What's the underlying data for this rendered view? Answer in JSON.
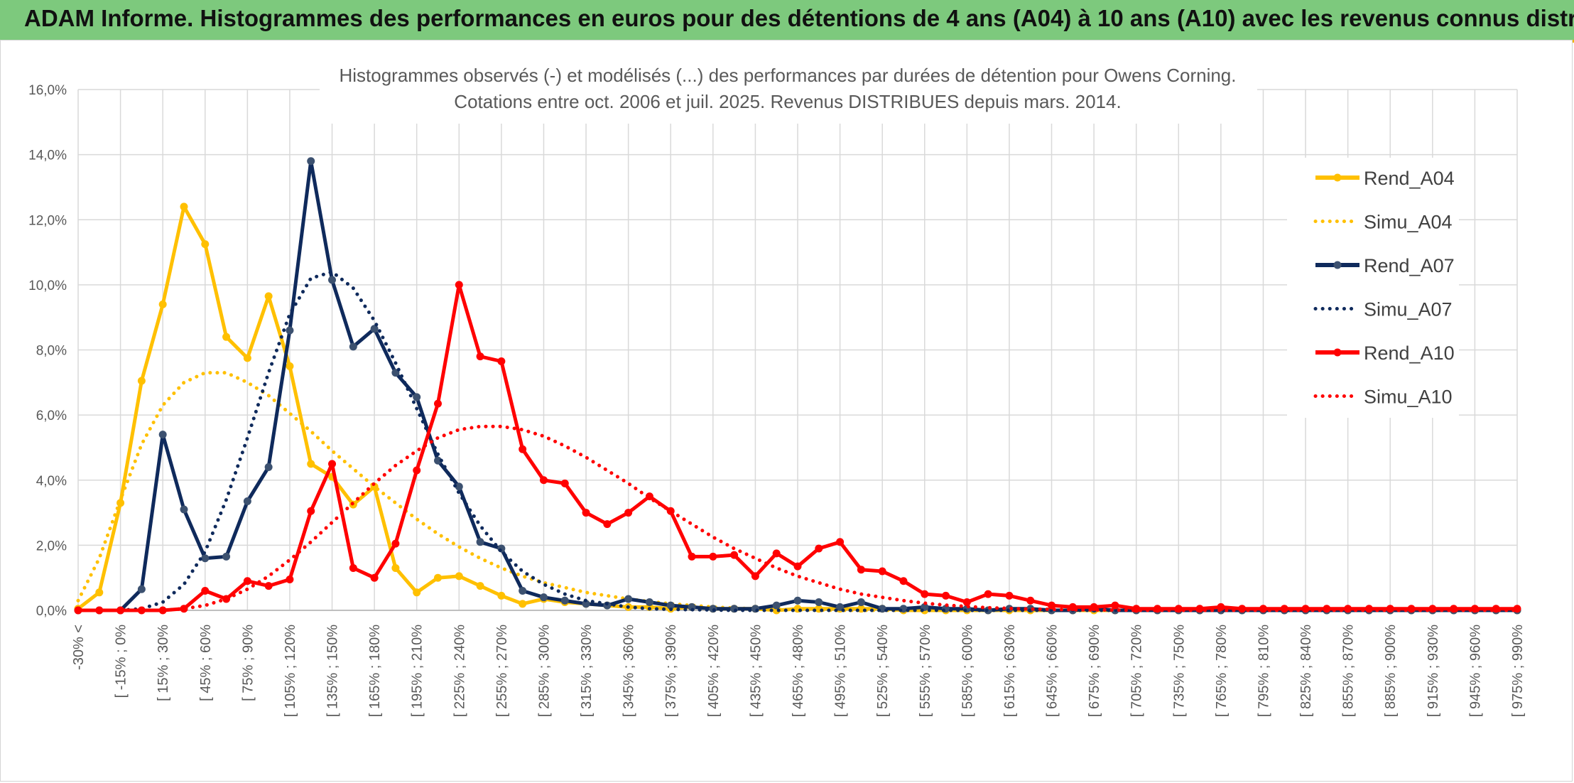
{
  "banner": {
    "title": "ADAM Informe. Histogrammes des performances en euros pour des détentions de 4 ans (A04) à 10 ans (A10) avec les revenus connus distribués"
  },
  "colors": {
    "banner": "#7dc97d",
    "A04": "#ffc000",
    "A07": "#0f2a5c",
    "A10": "#ff0000",
    "grid": "#d9d9d9",
    "text": "#595959"
  },
  "chart_data": {
    "type": "line",
    "title": [
      "Histogrammes observés (-) et modélisés (...) des performances par durées de détention pour Owens Corning.",
      "Cotations entre oct. 2006 et juil. 2025. Revenus DISTRIBUES depuis mars. 2014."
    ],
    "xlabel": "",
    "ylabel": "",
    "ylim": [
      0,
      16
    ],
    "y_ticks": [
      "0,0%",
      "2,0%",
      "4,0%",
      "6,0%",
      "8,0%",
      "10,0%",
      "12,0%",
      "14,0%",
      "16,0%"
    ],
    "grid": true,
    "legend_position": "right",
    "x_tick_labels": [
      "-30% <",
      "[ -15% ; 0%",
      "[ 15% ; 30%",
      "[ 45% ; 60%",
      "[ 75% ; 90%",
      "[ 105% ; 120%",
      "[ 135% ; 150%",
      "[ 165% ; 180%",
      "[ 195% ; 210%",
      "[ 225% ; 240%",
      "[ 255% ; 270%",
      "[ 285% ; 300%",
      "[ 315% ; 330%",
      "[ 345% ; 360%",
      "[ 375% ; 390%",
      "[ 405% ; 420%",
      "[ 435% ; 450%",
      "[ 465% ; 480%",
      "[ 495% ; 510%",
      "[ 525% ; 540%",
      "[ 555% ; 570%",
      "[ 585% ; 600%",
      "[ 615% ; 630%",
      "[ 645% ; 660%",
      "[ 675% ; 690%",
      "[ 705% ; 720%",
      "[ 735% ; 750%",
      "[ 765% ; 780%",
      "[ 795% ; 810%",
      "[ 825% ; 840%",
      "[ 855% ; 870%",
      "[ 885% ; 900%",
      "[ 915% ; 930%",
      "[ 945% ; 960%",
      "[ 975% ; 990%"
    ],
    "x_bin_start": [
      -30,
      -15,
      0,
      15,
      30,
      45,
      60,
      75,
      90,
      105,
      120,
      135,
      150,
      165,
      180,
      195,
      210,
      225,
      240,
      255,
      270,
      285,
      300,
      315,
      330,
      345,
      360,
      375,
      390,
      405,
      420,
      435,
      450,
      465,
      480,
      495,
      510,
      525,
      540,
      555,
      570,
      585,
      600,
      615,
      630,
      645,
      660,
      675,
      690,
      705,
      720,
      735,
      750,
      765,
      780,
      795,
      810,
      825,
      840,
      855,
      870,
      885,
      900,
      915,
      930,
      945,
      960,
      975,
      990
    ],
    "series": [
      {
        "name": "Rend_A04",
        "style": "solid",
        "values": [
          0.05,
          0.55,
          3.3,
          7.05,
          9.4,
          12.4,
          11.25,
          8.4,
          7.75,
          9.65,
          7.5,
          4.5,
          4.1,
          3.25,
          3.8,
          1.3,
          0.55,
          1.0,
          1.05,
          0.75,
          0.45,
          0.2,
          0.35,
          0.25,
          0.2,
          0.15,
          0.1,
          0.1,
          0.05,
          0.1,
          0.05,
          0.05,
          0.05,
          0.0,
          0.05,
          0.05,
          0.05,
          0.05,
          0.05,
          0.0,
          0.0,
          0.0,
          0.0,
          0.0,
          0.0,
          0.0,
          0.0,
          0.0,
          0.0,
          0.0,
          0.0,
          0.0,
          0.0,
          0.0,
          0.0,
          0.0,
          0.0,
          0.0,
          0.0,
          0.0,
          0.0,
          0.0,
          0.0,
          0.0,
          0.0,
          0.0,
          0.0,
          0.0,
          0.0
        ]
      },
      {
        "name": "Simu_A04",
        "style": "dotted",
        "values": [
          0.3,
          1.6,
          3.4,
          5.1,
          6.3,
          7.0,
          7.3,
          7.3,
          7.0,
          6.6,
          6.05,
          5.5,
          4.9,
          4.35,
          3.8,
          3.3,
          2.8,
          2.35,
          1.95,
          1.6,
          1.3,
          1.05,
          0.85,
          0.7,
          0.55,
          0.45,
          0.35,
          0.27,
          0.2,
          0.15,
          0.1,
          0.07,
          0.05,
          0.03,
          0.02,
          0.01,
          0.0,
          0.0,
          0.0,
          0.0,
          0.0,
          0.0,
          0.0,
          0.0,
          0.0,
          0.0,
          0.0,
          0.0,
          0.0,
          0.0,
          0.0,
          0.0,
          0.0,
          0.0,
          0.0,
          0.0,
          0.0,
          0.0,
          0.0,
          0.0,
          0.0,
          0.0,
          0.0,
          0.0,
          0.0,
          0.0,
          0.0,
          0.0,
          0.0
        ]
      },
      {
        "name": "Rend_A07",
        "style": "solid",
        "values": [
          0.0,
          0.0,
          0.0,
          0.65,
          5.4,
          3.1,
          1.6,
          1.65,
          3.35,
          4.4,
          8.6,
          13.8,
          10.15,
          8.1,
          8.65,
          7.3,
          6.55,
          4.6,
          3.8,
          2.1,
          1.9,
          0.6,
          0.4,
          0.3,
          0.2,
          0.15,
          0.35,
          0.25,
          0.15,
          0.1,
          0.05,
          0.05,
          0.05,
          0.15,
          0.3,
          0.25,
          0.1,
          0.25,
          0.05,
          0.05,
          0.1,
          0.05,
          0.05,
          0.0,
          0.05,
          0.05,
          0.0,
          0.0,
          0.05,
          0.0,
          0.0,
          0.0,
          0.0,
          0.0,
          0.0,
          0.0,
          0.0,
          0.0,
          0.0,
          0.0,
          0.0,
          0.0,
          0.0,
          0.0,
          0.0,
          0.0,
          0.0,
          0.0,
          0.0
        ]
      },
      {
        "name": "Simu_A07",
        "style": "dotted",
        "values": [
          0.0,
          0.0,
          0.0,
          0.05,
          0.25,
          0.8,
          1.8,
          3.4,
          5.3,
          7.3,
          9.1,
          10.2,
          10.4,
          9.9,
          8.9,
          7.6,
          6.2,
          4.8,
          3.6,
          2.6,
          1.8,
          1.2,
          0.8,
          0.5,
          0.3,
          0.2,
          0.1,
          0.05,
          0.03,
          0.02,
          0.01,
          0.0,
          0.0,
          0.0,
          0.0,
          0.0,
          0.0,
          0.0,
          0.0,
          0.0,
          0.0,
          0.0,
          0.0,
          0.0,
          0.0,
          0.0,
          0.0,
          0.0,
          0.0,
          0.0,
          0.0,
          0.0,
          0.0,
          0.0,
          0.0,
          0.0,
          0.0,
          0.0,
          0.0,
          0.0,
          0.0,
          0.0,
          0.0,
          0.0,
          0.0,
          0.0,
          0.0,
          0.0,
          0.0
        ]
      },
      {
        "name": "Rend_A10",
        "style": "solid",
        "values": [
          0.0,
          0.0,
          0.0,
          0.0,
          0.0,
          0.05,
          0.6,
          0.35,
          0.9,
          0.75,
          0.95,
          3.05,
          4.5,
          1.3,
          1.0,
          2.05,
          4.3,
          6.35,
          10.0,
          7.8,
          7.65,
          4.95,
          4.0,
          3.9,
          3.0,
          2.65,
          3.0,
          3.5,
          3.05,
          1.65,
          1.65,
          1.7,
          1.05,
          1.75,
          1.35,
          1.9,
          2.1,
          1.25,
          1.2,
          0.9,
          0.5,
          0.45,
          0.25,
          0.5,
          0.45,
          0.3,
          0.15,
          0.1,
          0.1,
          0.15,
          0.05,
          0.05,
          0.05,
          0.05,
          0.1,
          0.05,
          0.05,
          0.05,
          0.05,
          0.05,
          0.05,
          0.05,
          0.05,
          0.05,
          0.05,
          0.05,
          0.05,
          0.05,
          0.05
        ]
      },
      {
        "name": "Simu_A10",
        "style": "dotted",
        "values": [
          0.0,
          0.0,
          0.0,
          0.0,
          0.0,
          0.05,
          0.15,
          0.35,
          0.65,
          1.05,
          1.55,
          2.1,
          2.7,
          3.3,
          3.9,
          4.45,
          4.9,
          5.3,
          5.55,
          5.65,
          5.65,
          5.55,
          5.35,
          5.05,
          4.7,
          4.3,
          3.9,
          3.45,
          3.05,
          2.65,
          2.25,
          1.9,
          1.6,
          1.3,
          1.05,
          0.85,
          0.65,
          0.5,
          0.4,
          0.3,
          0.22,
          0.16,
          0.12,
          0.08,
          0.06,
          0.04,
          0.03,
          0.02,
          0.01,
          0.01,
          0.0,
          0.0,
          0.0,
          0.0,
          0.0,
          0.0,
          0.0,
          0.0,
          0.0,
          0.0,
          0.0,
          0.0,
          0.0,
          0.0,
          0.0,
          0.0,
          0.0,
          0.0,
          0.0
        ]
      }
    ]
  }
}
